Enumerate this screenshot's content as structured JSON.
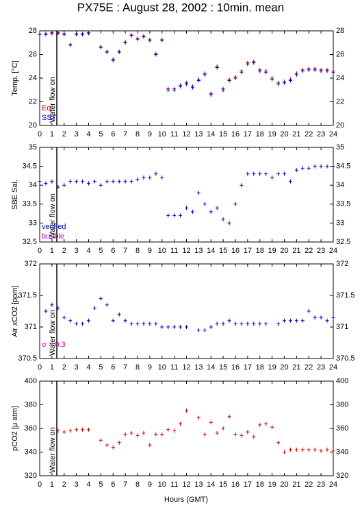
{
  "chart_data": [
    {
      "type": "scatter",
      "title": "PX75E : August 28, 2002 : 10min. mean",
      "ylabel": "Temp. [°C]",
      "annotation": "Water flow on",
      "vline_x": 1.4,
      "xlim": [
        0,
        24
      ],
      "xticks": [
        0,
        1,
        2,
        3,
        4,
        5,
        6,
        7,
        8,
        9,
        10,
        11,
        12,
        13,
        14,
        15,
        16,
        17,
        18,
        19,
        20,
        21,
        22,
        23,
        24
      ],
      "ylim": [
        20,
        28
      ],
      "yticks": [
        20,
        22,
        24,
        26,
        28
      ],
      "x": [
        0,
        0.5,
        1,
        1.5,
        2,
        2.5,
        3,
        3.5,
        4,
        4.5,
        5,
        5.5,
        6,
        6.5,
        7,
        7.5,
        8,
        8.5,
        9,
        9.5,
        10,
        10.5,
        11,
        11.5,
        12,
        12.5,
        13,
        13.5,
        14,
        14.5,
        15,
        15.5,
        16,
        16.5,
        17,
        17.5,
        18,
        18.5,
        19,
        19.5,
        20,
        20.5,
        21,
        21.5,
        22,
        22.5,
        23,
        23.5,
        24
      ],
      "series": [
        {
          "name": "Eq",
          "color": "#d00000",
          "values": [
            27.7,
            27.75,
            27.85,
            27.85,
            27.75,
            26.85,
            27.75,
            27.75,
            27.85,
            null,
            26.65,
            26.25,
            25.6,
            26.25,
            27.05,
            27.65,
            27.35,
            27.55,
            27.25,
            26.05,
            27.25,
            23.1,
            23.1,
            23.4,
            23.6,
            23.3,
            23.9,
            24.4,
            22.7,
            25.0,
            23.1,
            23.9,
            24.1,
            24.6,
            25.3,
            25.4,
            24.7,
            24.6,
            24.0,
            23.6,
            23.7,
            23.9,
            24.4,
            24.7,
            24.8,
            24.8,
            24.7,
            24.7,
            24.6
          ]
        },
        {
          "name": "SST",
          "color": "#0000c0",
          "values": [
            27.7,
            27.7,
            27.8,
            27.8,
            27.7,
            26.8,
            27.7,
            27.7,
            27.8,
            null,
            26.6,
            26.2,
            25.5,
            26.2,
            27.0,
            27.6,
            27.3,
            27.5,
            27.2,
            26.0,
            27.2,
            23.0,
            23.0,
            23.3,
            23.5,
            23.2,
            23.8,
            24.3,
            22.6,
            24.9,
            23.0,
            23.8,
            24.0,
            24.5,
            25.2,
            25.3,
            24.6,
            24.5,
            23.9,
            23.5,
            23.6,
            23.8,
            24.3,
            24.6,
            24.7,
            24.7,
            24.6,
            24.6,
            24.5
          ]
        }
      ]
    },
    {
      "type": "scatter",
      "ylabel": "SBE Sal.",
      "annotation": "Water flow on",
      "vline_x": 1.4,
      "xlim": [
        0,
        24
      ],
      "xticks": [
        0,
        1,
        2,
        3,
        4,
        5,
        6,
        7,
        8,
        9,
        10,
        11,
        12,
        13,
        14,
        15,
        16,
        17,
        18,
        19,
        20,
        21,
        22,
        23,
        24
      ],
      "ylim": [
        32.5,
        35
      ],
      "yticks": [
        32.5,
        33,
        33.5,
        34,
        34.5,
        35
      ],
      "x": [
        0,
        0.5,
        1,
        1.5,
        2,
        2.5,
        3,
        3.5,
        4,
        4.5,
        5,
        5.5,
        6,
        6.5,
        7,
        7.5,
        8,
        8.5,
        9,
        9.5,
        10,
        10.5,
        11,
        11.5,
        12,
        12.5,
        13,
        13.5,
        14,
        14.5,
        15,
        15.5,
        16,
        16.5,
        17,
        17.5,
        18,
        18.5,
        19,
        19.5,
        20,
        20.5,
        21,
        21.5,
        22,
        22.5,
        23,
        23.5,
        24
      ],
      "flags": [
        {
          "name": "verified",
          "color": "#0000c0"
        },
        {
          "name": "bubble",
          "color": "#cc00cc"
        }
      ],
      "series": [
        {
          "name": "verified",
          "color": "#0000c0",
          "values": [
            34.1,
            34.05,
            34.1,
            33.95,
            34.0,
            34.1,
            34.1,
            34.1,
            34.05,
            34.1,
            34.0,
            34.1,
            34.1,
            34.1,
            34.1,
            34.1,
            34.15,
            34.2,
            34.2,
            34.3,
            34.2,
            33.2,
            33.2,
            33.2,
            33.4,
            33.3,
            33.8,
            33.5,
            33.3,
            33.4,
            33.1,
            33.0,
            33.5,
            34.0,
            34.3,
            34.3,
            34.3,
            34.3,
            34.2,
            34.3,
            34.3,
            34.1,
            34.4,
            34.45,
            34.45,
            34.5,
            34.5,
            34.5,
            34.5
          ]
        }
      ]
    },
    {
      "type": "scatter",
      "ylabel": "Air xCO2 [ppm]",
      "annotation": "Water flow on",
      "vline_x": 1.4,
      "flag_label": "σ > 0.3",
      "flag_color": "#cc00cc",
      "xlim": [
        0,
        24
      ],
      "xticks": [
        0,
        1,
        2,
        3,
        4,
        5,
        6,
        7,
        8,
        9,
        10,
        11,
        12,
        13,
        14,
        15,
        16,
        17,
        18,
        19,
        20,
        21,
        22,
        23,
        24
      ],
      "ylim": [
        370.5,
        372
      ],
      "yticks": [
        370.5,
        371,
        371.5,
        372
      ],
      "x": [
        0,
        0.5,
        1,
        1.5,
        2,
        2.5,
        3,
        3.5,
        4,
        4.5,
        5,
        5.5,
        6,
        6.5,
        7,
        7.5,
        8,
        8.5,
        9,
        9.5,
        10,
        10.5,
        11,
        11.5,
        12,
        12.5,
        13,
        13.5,
        14,
        14.5,
        15,
        15.5,
        16,
        16.5,
        17,
        17.5,
        18,
        18.5,
        19,
        19.5,
        20,
        20.5,
        21,
        21.5,
        22,
        22.5,
        23,
        23.5,
        24
      ],
      "series": [
        {
          "name": "xCO2",
          "color": "#0000c0",
          "values": [
            null,
            371.25,
            371.35,
            371.3,
            371.15,
            371.1,
            371.05,
            371.05,
            371.1,
            371.3,
            371.45,
            371.35,
            371.1,
            371.2,
            371.1,
            371.05,
            371.05,
            371.05,
            371.05,
            371.05,
            371.0,
            371.0,
            371.0,
            371.0,
            371.0,
            null,
            370.95,
            370.95,
            371.0,
            371.05,
            371.05,
            371.1,
            371.05,
            371.05,
            371.05,
            371.05,
            371.05,
            371.05,
            null,
            371.05,
            371.1,
            371.1,
            371.1,
            371.1,
            371.25,
            371.15,
            371.15,
            371.1,
            371.15
          ]
        }
      ]
    },
    {
      "type": "scatter",
      "ylabel": "pCO2 [μ atm]",
      "xlabel": "Hours (GMT)",
      "annotation": "Water flow on",
      "vline_x": 1.4,
      "xlim": [
        0,
        24
      ],
      "xticks": [
        0,
        1,
        2,
        3,
        4,
        5,
        6,
        7,
        8,
        9,
        10,
        11,
        12,
        13,
        14,
        15,
        16,
        17,
        18,
        19,
        20,
        21,
        22,
        23,
        24
      ],
      "ylim": [
        320,
        400
      ],
      "yticks": [
        320,
        340,
        360,
        380,
        400
      ],
      "x": [
        0,
        0.5,
        1,
        1.5,
        2,
        2.5,
        3,
        3.5,
        4,
        4.5,
        5,
        5.5,
        6,
        6.5,
        7,
        7.5,
        8,
        8.5,
        9,
        9.5,
        10,
        10.5,
        11,
        11.5,
        12,
        12.5,
        13,
        13.5,
        14,
        14.5,
        15,
        15.5,
        16,
        16.5,
        17,
        17.5,
        18,
        18.5,
        19,
        19.5,
        20,
        20.5,
        21,
        21.5,
        22,
        22.5,
        23,
        23.5,
        24
      ],
      "series": [
        {
          "name": "pCO2",
          "color": "#d00000",
          "values": [
            null,
            null,
            null,
            358,
            357,
            358,
            359,
            359,
            359,
            null,
            350,
            346,
            344,
            348,
            355,
            356,
            354,
            356,
            346,
            355,
            355,
            359,
            358,
            364,
            375,
            null,
            369,
            355,
            365,
            356,
            360,
            370,
            355,
            354,
            357,
            353,
            363,
            364,
            361,
            348,
            340,
            342,
            342,
            342,
            342,
            342,
            341,
            342,
            341
          ]
        }
      ]
    }
  ]
}
